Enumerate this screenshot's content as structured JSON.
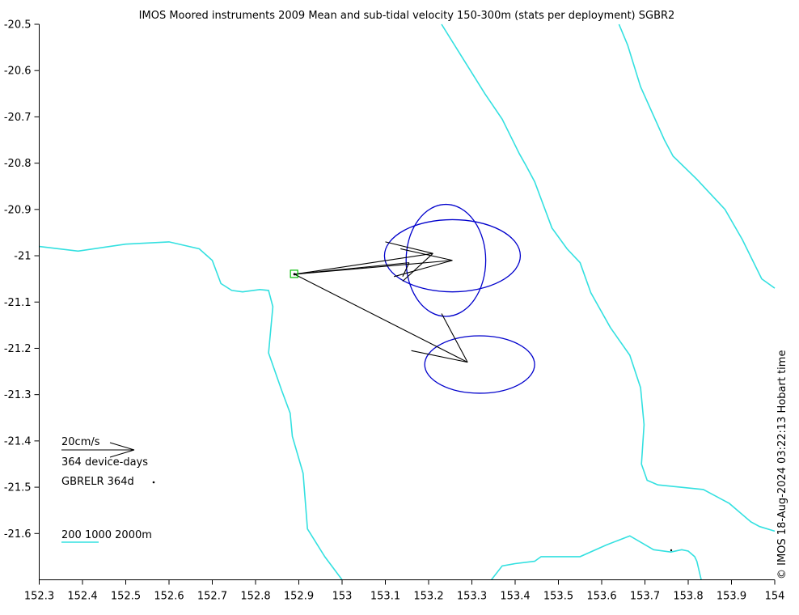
{
  "title": "IMOS Moored instruments 2009 Mean and sub-tidal velocity 150-300m (stats per deployment) SGBR2",
  "stamp": "© IMOS 18-Aug-2024 03:22:13 Hobart time",
  "colors": {
    "coast": "#33e0e0",
    "vector": "#000000",
    "ellipse": "#0000cc",
    "mooring": "#00bb00"
  },
  "chart_data": {
    "type": "map",
    "xlim": [
      152.3,
      154.0
    ],
    "ylim": [
      -21.7,
      -20.5
    ],
    "xticks": [
      "152.3",
      "152.4",
      "152.5",
      "152.6",
      "152.7",
      "152.8",
      "152.9",
      "153",
      "153.1",
      "153.2",
      "153.3",
      "153.4",
      "153.5",
      "153.6",
      "153.7",
      "153.8",
      "153.9",
      "154"
    ],
    "yticks": [
      "-20.5",
      "-20.6",
      "-20.7",
      "-20.8",
      "-20.9",
      "-21",
      "-21.1",
      "-21.2",
      "-21.3",
      "-21.4",
      "-21.5",
      "-21.6"
    ],
    "legend": {
      "scale_label": "20cm/s",
      "days_label": "364 device-days",
      "site_label": "GBRELR 364d",
      "isobaths_label": "200 1000 2000m"
    },
    "mooring": {
      "name": "GBRELR",
      "lon": 152.89,
      "lat": -21.04
    },
    "isobaths": [
      {
        "name": "200m",
        "points": [
          [
            152.3,
            -20.98
          ],
          [
            152.39,
            -20.99
          ],
          [
            152.5,
            -20.975
          ],
          [
            152.6,
            -20.97
          ],
          [
            152.67,
            -20.985
          ],
          [
            152.7,
            -21.01
          ],
          [
            152.72,
            -21.06
          ],
          [
            152.745,
            -21.075
          ],
          [
            152.77,
            -21.078
          ],
          [
            152.81,
            -21.073
          ],
          [
            152.83,
            -21.075
          ],
          [
            152.84,
            -21.11
          ],
          [
            152.83,
            -21.21
          ],
          [
            152.86,
            -21.29
          ],
          [
            152.88,
            -21.34
          ],
          [
            152.885,
            -21.39
          ],
          [
            152.91,
            -21.47
          ],
          [
            152.92,
            -21.59
          ],
          [
            152.96,
            -21.65
          ],
          [
            153.0,
            -21.7
          ]
        ]
      },
      {
        "name": "1000m",
        "points": [
          [
            153.23,
            -20.5
          ],
          [
            153.28,
            -20.575
          ],
          [
            153.33,
            -20.65
          ],
          [
            153.37,
            -20.705
          ],
          [
            153.41,
            -20.78
          ],
          [
            153.425,
            -20.805
          ],
          [
            153.445,
            -20.84
          ],
          [
            153.485,
            -20.94
          ],
          [
            153.52,
            -20.985
          ],
          [
            153.55,
            -21.015
          ],
          [
            153.575,
            -21.08
          ],
          [
            153.62,
            -21.155
          ],
          [
            153.665,
            -21.215
          ],
          [
            153.69,
            -21.285
          ],
          [
            153.698,
            -21.365
          ],
          [
            153.692,
            -21.45
          ],
          [
            153.705,
            -21.485
          ],
          [
            153.73,
            -21.495
          ],
          [
            153.835,
            -21.505
          ],
          [
            153.895,
            -21.535
          ],
          [
            153.945,
            -21.575
          ],
          [
            153.965,
            -21.585
          ],
          [
            154.0,
            -21.595
          ]
        ]
      },
      {
        "name": "2000m",
        "points": [
          [
            153.64,
            -20.5
          ],
          [
            153.66,
            -20.545
          ],
          [
            153.69,
            -20.635
          ],
          [
            153.745,
            -20.75
          ],
          [
            153.765,
            -20.785
          ],
          [
            153.82,
            -20.835
          ],
          [
            153.845,
            -20.86
          ],
          [
            153.885,
            -20.9
          ],
          [
            153.925,
            -20.965
          ],
          [
            153.97,
            -21.05
          ],
          [
            154.0,
            -21.07
          ]
        ]
      },
      {
        "name": "shelf-south",
        "points": [
          [
            153.345,
            -21.7
          ],
          [
            153.37,
            -21.67
          ],
          [
            153.4,
            -21.665
          ],
          [
            153.445,
            -21.66
          ],
          [
            153.46,
            -21.65
          ],
          [
            153.55,
            -21.65
          ],
          [
            153.61,
            -21.625
          ],
          [
            153.665,
            -21.605
          ],
          [
            153.72,
            -21.635
          ],
          [
            153.76,
            -21.64
          ],
          [
            153.785,
            -21.635
          ],
          [
            153.8,
            -21.638
          ],
          [
            153.815,
            -21.65
          ],
          [
            153.82,
            -21.66
          ],
          [
            153.83,
            -21.7
          ]
        ]
      }
    ],
    "vector_lines": [
      [
        [
          152.89,
          -21.04
        ],
        [
          153.255,
          -21.01
        ]
      ],
      [
        [
          152.89,
          -21.04
        ],
        [
          153.21,
          -20.995
        ]
      ],
      [
        [
          152.89,
          -21.04
        ],
        [
          153.155,
          -21.015
        ]
      ],
      [
        [
          152.89,
          -21.04
        ],
        [
          153.29,
          -21.23
        ]
      ],
      [
        [
          153.29,
          -21.23
        ],
        [
          153.23,
          -21.125
        ]
      ],
      [
        [
          153.29,
          -21.23
        ],
        [
          153.16,
          -21.205
        ]
      ],
      [
        [
          153.255,
          -21.01
        ],
        [
          153.12,
          -21.045
        ]
      ],
      [
        [
          153.255,
          -21.01
        ],
        [
          153.135,
          -20.985
        ]
      ],
      [
        [
          153.21,
          -20.995
        ],
        [
          153.1,
          -20.97
        ]
      ],
      [
        [
          153.21,
          -20.995
        ],
        [
          153.14,
          -21.055
        ]
      ],
      [
        [
          153.155,
          -21.015
        ],
        [
          153.14,
          -21.045
        ]
      ]
    ],
    "ellipses": [
      {
        "lon": 153.255,
        "lat": -21.0,
        "rx_deg": 0.157,
        "ry_deg": 0.078
      },
      {
        "lon": 153.24,
        "lat": -21.01,
        "rx_deg": 0.092,
        "ry_deg": 0.121
      },
      {
        "lon": 153.318,
        "lat": -21.235,
        "rx_deg": 0.127,
        "ry_deg": 0.062
      }
    ]
  }
}
